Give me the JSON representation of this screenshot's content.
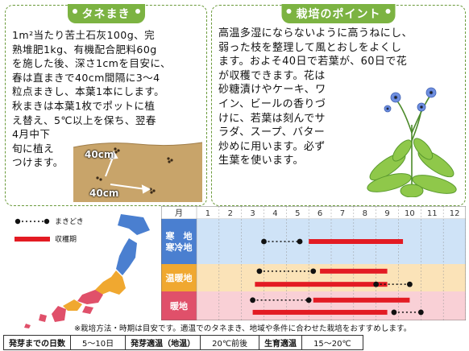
{
  "sowing_card": {
    "title": "タネまき",
    "lines": [
      "1m²当たり苦土石灰100g、完",
      "熟堆肥1kg、有機配合肥料60g",
      "を施した後、深さ1cmを目安に、",
      "春は直まきで40cm間隔に3〜4",
      "粒点まきし、本葉1本にします。",
      "秋まきは本葉1枚でポットに植",
      "え替え、5℃以上を保ち、翌春",
      "4月中下",
      "旬に植え",
      "つけます。"
    ],
    "spacing_label_1": "40cm",
    "spacing_label_2": "40cm"
  },
  "cultivation_card": {
    "title": "栽培のポイント",
    "lines": [
      "高温多湿にならないように高うねにし、",
      "弱った枝を整理して風とおしをよくし",
      "ます。およそ40日で若葉が、60日で花",
      "が収穫できます。花は",
      "砂糖漬けやケーキ、ワ",
      "イン、ビールの香りづ",
      "けに、若葉は刻んでサ",
      "ラダ、スープ、バター",
      "炒めに用います。必ず",
      "生葉を使います。"
    ]
  },
  "legend": {
    "sowing": "まきどき",
    "harvest": "収穫期"
  },
  "calendar": {
    "header_label": "月",
    "months": [
      "1",
      "2",
      "3",
      "4",
      "5",
      "6",
      "7",
      "8",
      "9",
      "10",
      "11",
      "12"
    ],
    "rows": [
      {
        "label_lines": [
          "寒　地",
          "寒冷地"
        ],
        "color": "#4a7fd0",
        "band": "#cfe3f7"
      },
      {
        "label_lines": [
          "温暖地"
        ],
        "color": "#f0a830",
        "band": "#fbe3b8"
      },
      {
        "label_lines": [
          "暖地"
        ],
        "color": "#e0506a",
        "band": "#f9d0d6"
      }
    ],
    "sowing_color": "#111111",
    "harvest_color": "#e31b23",
    "note": "※栽培方法・時期は目安です。適温でのタネまき、地域や条件に合わせた栽培をおすすめします。"
  },
  "stats": {
    "germination_days_label": "発芽までの日数",
    "germination_days_value": "5〜10日",
    "germination_temp_label": "発芽適温（地温）",
    "germination_temp_value": "20℃前後",
    "growth_temp_label": "生育適温",
    "growth_temp_value": "15〜20℃"
  }
}
